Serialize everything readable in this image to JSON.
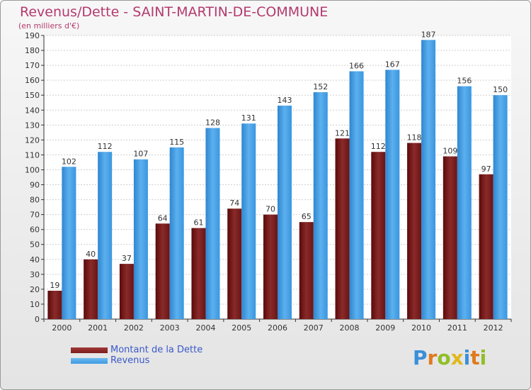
{
  "title": "Revenus/Dette - SAINT-MARTIN-DE-COMMUNE",
  "subtitle": "(en milliers d'€)",
  "logo_text": "Proxiti",
  "colors": {
    "dette": "#7a1a1a",
    "revenus": "#3f9be3",
    "title": "#b33a6e",
    "legend_text": "#3b58c9"
  },
  "chart_data": {
    "type": "bar",
    "title": "Revenus/Dette - SAINT-MARTIN-DE-COMMUNE",
    "ylabel": "(en milliers d'€)",
    "xlabel": "",
    "ylim": [
      0,
      190
    ],
    "ytick_step": 10,
    "grid": true,
    "legend_position": "bottom-left",
    "categories": [
      "2000",
      "2001",
      "2002",
      "2003",
      "2004",
      "2005",
      "2006",
      "2007",
      "2008",
      "2009",
      "2010",
      "2011",
      "2012"
    ],
    "series": [
      {
        "name": "Montant de la Dette",
        "color": "#7a1a1a",
        "values": [
          19,
          40,
          37,
          64,
          61,
          74,
          70,
          65,
          121,
          112,
          118,
          109,
          97
        ]
      },
      {
        "name": "Revenus",
        "color": "#3f9be3",
        "values": [
          102,
          112,
          107,
          115,
          128,
          131,
          143,
          152,
          166,
          167,
          187,
          156,
          150
        ]
      }
    ]
  }
}
